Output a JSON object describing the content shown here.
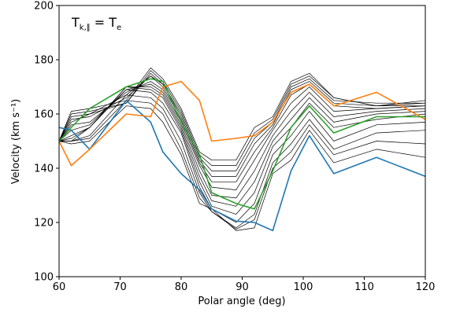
{
  "chart_data": {
    "type": "line",
    "title": "",
    "annotation": {
      "main": "T",
      "sub": "k,∥",
      "rhs": "= T",
      "rhs_sub": "e"
    },
    "xlabel": "Polar angle (deg)",
    "ylabel": "Velocity (km s⁻¹)",
    "xlim": [
      60,
      120
    ],
    "ylim": [
      100,
      200
    ],
    "xticks": [
      60,
      70,
      80,
      90,
      100,
      110,
      120
    ],
    "yticks": [
      100,
      120,
      140,
      160,
      180,
      200
    ],
    "grid": false,
    "x": [
      60,
      62,
      65,
      71,
      75,
      77,
      80,
      83,
      85,
      89,
      92,
      95,
      98,
      101,
      105,
      112,
      120
    ],
    "series": [
      {
        "color": "#1f77b4",
        "values": [
          155,
          154,
          147,
          165,
          157,
          146,
          138,
          132,
          125,
          120.5,
          120,
          117,
          139,
          152,
          138,
          144,
          137
        ]
      },
      {
        "color": "#ff7f0e",
        "values": [
          150,
          141,
          147,
          160,
          159,
          170,
          172,
          165,
          150,
          151,
          152,
          157,
          168,
          171,
          163,
          168,
          158
        ]
      },
      {
        "color": "#2ca02c",
        "values": [
          150,
          155,
          162,
          170,
          173,
          172,
          157,
          145,
          131,
          127,
          125,
          139,
          155,
          163,
          153,
          159,
          159
        ]
      },
      {
        "color": "#000000",
        "values": [
          150,
          161,
          162,
          165,
          177,
          173,
          162,
          146,
          143,
          143,
          155,
          159,
          172,
          175,
          166,
          163,
          165
        ]
      },
      {
        "color": "#000000",
        "values": [
          150,
          160,
          161,
          164,
          176,
          172,
          161,
          145,
          141,
          141,
          153,
          158,
          171,
          174,
          166,
          163,
          164
        ]
      },
      {
        "color": "#000000",
        "values": [
          150,
          159,
          160,
          164,
          175,
          171,
          160,
          144,
          139,
          139,
          151,
          157,
          170,
          173,
          165,
          164,
          164
        ]
      },
      {
        "color": "#000000",
        "values": [
          150,
          158,
          159,
          166,
          174,
          171,
          159,
          143,
          137,
          137,
          149,
          156,
          169,
          172,
          164,
          163,
          163
        ]
      },
      {
        "color": "#000000",
        "values": [
          150,
          157,
          160,
          167,
          174,
          170,
          158,
          142,
          135,
          135,
          146,
          155,
          167,
          171,
          163,
          162,
          163
        ]
      },
      {
        "color": "#000000",
        "values": [
          150,
          156,
          157,
          168,
          172,
          169,
          157,
          141,
          133,
          132,
          143,
          154,
          164,
          170,
          161,
          162,
          163
        ]
      },
      {
        "color": "#000000",
        "values": [
          150,
          154,
          156,
          169,
          171,
          168,
          156,
          139,
          130,
          129,
          139,
          152,
          161,
          168,
          159,
          161,
          162
        ]
      },
      {
        "color": "#000000",
        "values": [
          150,
          152,
          155,
          170,
          170,
          167,
          155,
          137,
          128,
          126,
          135,
          150,
          158,
          166,
          157,
          160,
          161
        ]
      },
      {
        "color": "#000000",
        "values": [
          150,
          151,
          155,
          170,
          169,
          166,
          154,
          135,
          126,
          123,
          131,
          148,
          155,
          164,
          155,
          158,
          160
        ]
      },
      {
        "color": "#000000",
        "values": [
          150,
          150,
          155,
          169,
          168,
          164,
          153,
          133,
          125,
          120,
          127,
          145,
          152,
          161,
          150,
          156,
          157
        ]
      },
      {
        "color": "#000000",
        "values": [
          150,
          150,
          152,
          167,
          166,
          162,
          150,
          131,
          124,
          118,
          123,
          142,
          149,
          158,
          147,
          153,
          154
        ]
      },
      {
        "color": "#000000",
        "values": [
          150,
          150,
          151,
          165,
          164,
          160,
          147,
          129,
          124,
          117.5,
          121,
          140,
          146,
          156,
          145,
          150,
          149
        ]
      },
      {
        "color": "#000000",
        "values": [
          150,
          149,
          150,
          163,
          162,
          157,
          145,
          127,
          125,
          117,
          118,
          138,
          143,
          154,
          142,
          147,
          144
        ]
      }
    ]
  }
}
